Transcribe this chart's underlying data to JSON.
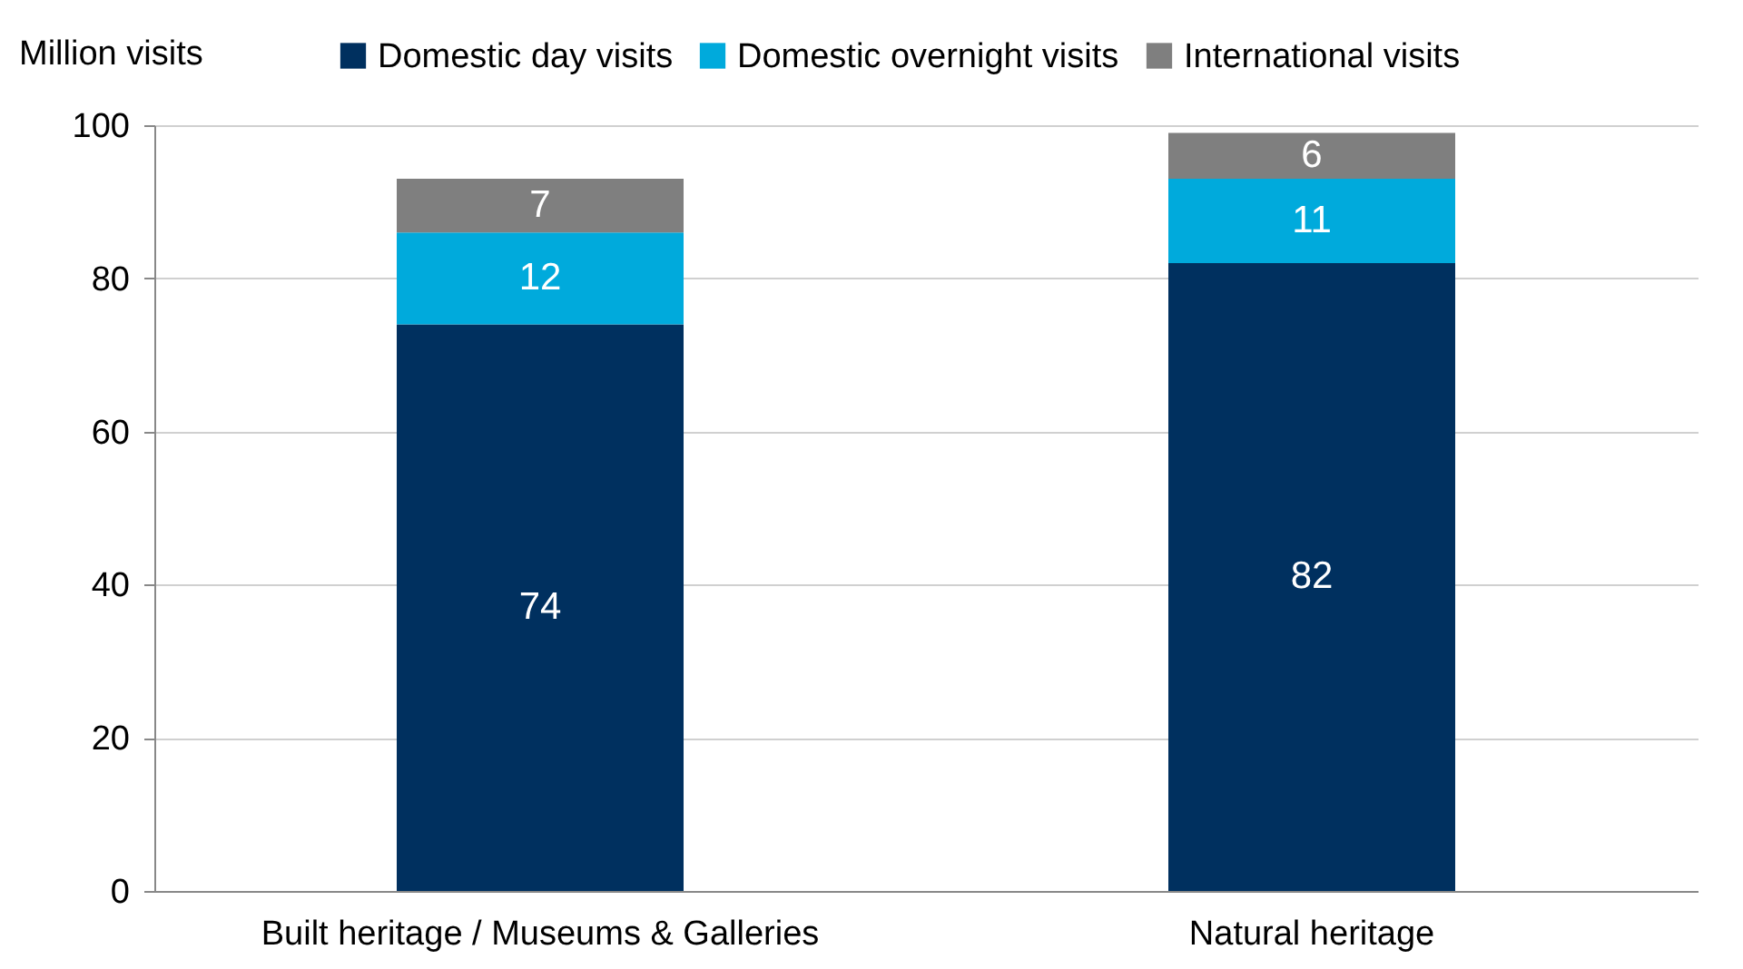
{
  "chart_data": {
    "type": "bar",
    "stacked": true,
    "ylabel": "Million visits",
    "categories": [
      "Built heritage / Museums & Galleries",
      "Natural heritage"
    ],
    "series": [
      {
        "name": "Domestic day visits",
        "color": "#00305f",
        "values": [
          74,
          82
        ]
      },
      {
        "name": "Domestic overnight visits",
        "color": "#00aadc",
        "values": [
          12,
          11
        ]
      },
      {
        "name": "International visits",
        "color": "#7f7f7f",
        "values": [
          7,
          6
        ]
      }
    ],
    "ylim": [
      0,
      100
    ],
    "yticks": [
      0,
      20,
      40,
      60,
      80,
      100
    ],
    "grid": "y",
    "legend": "top right",
    "data_labels": true
  }
}
